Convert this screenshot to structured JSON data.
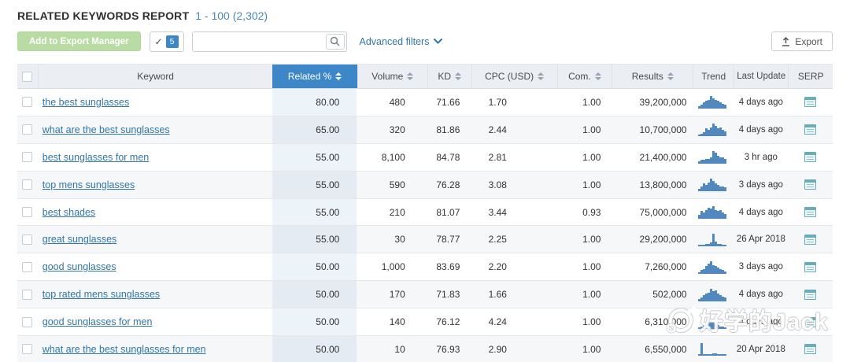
{
  "header": {
    "title": "RELATED KEYWORDS REPORT",
    "pagination": "1 - 100 (2,302)"
  },
  "toolbar": {
    "add_to_export_label": "Add to Export Manager",
    "select_check": "✓",
    "selected_count": "5",
    "search_value": "",
    "search_placeholder": "",
    "advanced_filters_label": "Advanced filters",
    "export_label": "Export"
  },
  "table": {
    "columns": [
      {
        "key": "cb",
        "label": "",
        "sortable": false,
        "active": false
      },
      {
        "key": "keyword",
        "label": "Keyword",
        "sortable": false,
        "active": false
      },
      {
        "key": "related",
        "label": "Related %",
        "sortable": true,
        "active": true
      },
      {
        "key": "volume",
        "label": "Volume",
        "sortable": true,
        "active": false
      },
      {
        "key": "kd",
        "label": "KD",
        "sortable": true,
        "active": false
      },
      {
        "key": "cpc",
        "label": "CPC (USD)",
        "sortable": true,
        "active": false
      },
      {
        "key": "com",
        "label": "Com.",
        "sortable": true,
        "active": false
      },
      {
        "key": "results",
        "label": "Results",
        "sortable": true,
        "active": false
      },
      {
        "key": "trend",
        "label": "Trend",
        "sortable": false,
        "active": false
      },
      {
        "key": "last_update",
        "label": "Last Update",
        "sortable": false,
        "active": false
      },
      {
        "key": "serp",
        "label": "SERP",
        "sortable": false,
        "active": false
      }
    ],
    "rows": [
      {
        "keyword": "the best sunglasses",
        "related": "80.00",
        "volume": "480",
        "kd": "71.66",
        "cpc": "1.70",
        "com": "1.00",
        "results": "39,200,000",
        "trend": [
          2,
          3,
          5,
          6,
          7,
          10,
          8,
          7,
          6,
          5,
          4,
          3
        ],
        "last_update": "4 days ago"
      },
      {
        "keyword": "what are the best sunglasses",
        "related": "65.00",
        "volume": "320",
        "kd": "81.86",
        "cpc": "2.44",
        "com": "1.00",
        "results": "10,700,000",
        "trend": [
          1,
          2,
          3,
          6,
          5,
          7,
          10,
          8,
          6,
          7,
          5,
          4
        ],
        "last_update": "4 days ago"
      },
      {
        "keyword": "best sunglasses for men",
        "related": "55.00",
        "volume": "8,100",
        "kd": "84.78",
        "cpc": "2.81",
        "com": "1.00",
        "results": "21,400,000",
        "trend": [
          2,
          3,
          3,
          4,
          4,
          5,
          10,
          9,
          6,
          5,
          5,
          4
        ],
        "last_update": "3 hr ago"
      },
      {
        "keyword": "top mens sunglasses",
        "related": "55.00",
        "volume": "590",
        "kd": "76.28",
        "cpc": "3.08",
        "com": "1.00",
        "results": "13,800,000",
        "trend": [
          2,
          4,
          6,
          5,
          7,
          10,
          8,
          6,
          5,
          4,
          4,
          3
        ],
        "last_update": "3 days ago"
      },
      {
        "keyword": "best shades",
        "related": "55.00",
        "volume": "210",
        "kd": "81.07",
        "cpc": "3.44",
        "com": "0.93",
        "results": "75,000,000",
        "trend": [
          3,
          6,
          5,
          7,
          9,
          8,
          10,
          7,
          6,
          7,
          5,
          4
        ],
        "last_update": "4 days ago"
      },
      {
        "keyword": "great sunglasses",
        "related": "55.00",
        "volume": "30",
        "kd": "78.77",
        "cpc": "2.25",
        "com": "1.00",
        "results": "29,200,000",
        "trend": [
          1,
          1,
          1,
          2,
          2,
          3,
          10,
          4,
          2,
          2,
          1,
          1
        ],
        "last_update": "26 Apr 2018"
      },
      {
        "keyword": "good sunglasses",
        "related": "50.00",
        "volume": "1,000",
        "kd": "83.69",
        "cpc": "2.20",
        "com": "1.00",
        "results": "7,260,000",
        "trend": [
          1,
          3,
          4,
          6,
          8,
          10,
          7,
          6,
          5,
          4,
          3,
          2
        ],
        "last_update": "3 days ago"
      },
      {
        "keyword": "top rated mens sunglasses",
        "related": "50.00",
        "volume": "170",
        "kd": "71.83",
        "cpc": "1.66",
        "com": "1.00",
        "results": "502,000",
        "trend": [
          2,
          3,
          5,
          6,
          7,
          10,
          8,
          9,
          6,
          5,
          4,
          3
        ],
        "last_update": "4 days ago"
      },
      {
        "keyword": "good sunglasses for men",
        "related": "50.00",
        "volume": "140",
        "kd": "76.12",
        "cpc": "4.24",
        "com": "1.00",
        "results": "6,310,000",
        "trend": [
          1,
          2,
          3,
          4,
          10,
          7,
          5,
          4,
          3,
          2,
          2,
          1
        ],
        "last_update": "4 days ago"
      },
      {
        "keyword": "what are the best sunglasses for men",
        "related": "50.00",
        "volume": "10",
        "kd": "76.93",
        "cpc": "2.90",
        "com": "1.00",
        "results": "6,550,000",
        "trend": [
          1,
          10,
          1,
          1,
          1,
          1,
          2,
          2,
          1,
          1,
          1,
          1
        ],
        "last_update": "20 Apr 2018"
      }
    ]
  },
  "watermark": {
    "text": "好学的Jack"
  },
  "colors": {
    "accent_blue": "#3d87c8",
    "link_blue": "#3077a8",
    "pagination_blue": "#4889bd",
    "export_manager_green": "#b9dca4",
    "serp_icon_teal": "#6aacb8",
    "sparkline_blue": "#5188c0",
    "header_row_bg": "#ebeff3",
    "alt_row_bg": "#f6f7f9"
  }
}
